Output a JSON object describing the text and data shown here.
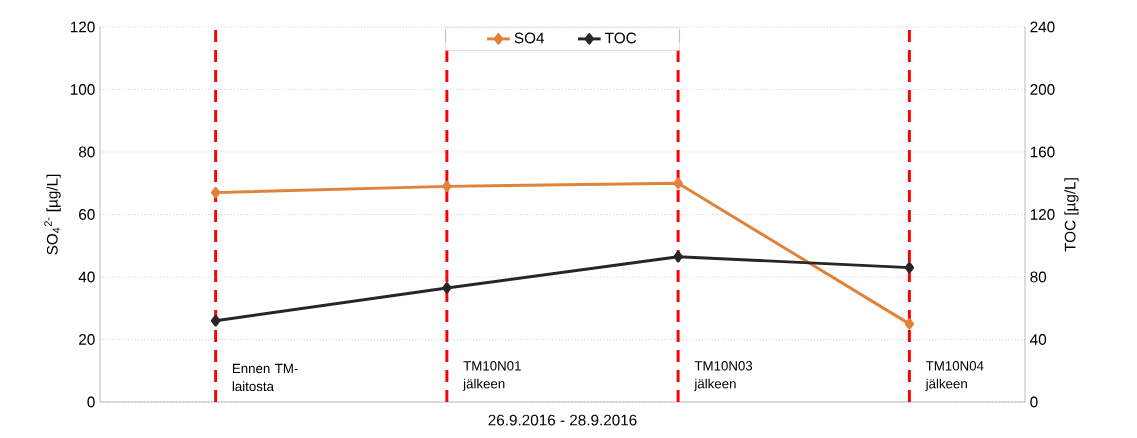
{
  "chart_data": {
    "type": "line",
    "xlabel": "26.9.2016 - 28.9.2016",
    "ylabel": "SO$_{4}$$^{2-}$ [µg/L]",
    "y2label": "TOC [µg/L]",
    "categories": [
      "Ennen TM-laitosta",
      "TM10N01 jälkeen",
      "TM10N03 jälkeen",
      "TM10N04 jälkeen"
    ],
    "series": [
      {
        "name": "SO4",
        "color": "#e0823a",
        "values": [
          67,
          69,
          70,
          25
        ]
      },
      {
        "name": "TOC",
        "color": "#262626",
        "values": [
          52,
          73,
          93,
          86
        ],
        "axis": "y2"
      }
    ],
    "ylim": [
      0,
      120
    ],
    "yticks": [
      0,
      20,
      40,
      60,
      80,
      100,
      120
    ],
    "y2lim": [
      0,
      240
    ],
    "y2ticks": [
      0,
      40,
      80,
      120,
      160,
      200,
      240
    ],
    "ref_lines": [
      {
        "axis": "x",
        "value": "Ennen TM-laitosta",
        "color": "#ff0000",
        "line_style": "dashed"
      },
      {
        "axis": "x",
        "value": "TM10N01 jälkeen",
        "color": "#ff0000",
        "line_style": "dashed"
      },
      {
        "axis": "x",
        "value": "TM10N03 jälkeen",
        "color": "#ff0000",
        "line_style": "dashed"
      },
      {
        "axis": "x",
        "value": "TM10N04 jälkeen",
        "color": "#ff0000",
        "line_style": "dashed"
      }
    ],
    "grid": "y",
    "legend": "top",
    "marker": "diamond",
    "line_style": "solid",
    "tick_labels": "y"
  }
}
